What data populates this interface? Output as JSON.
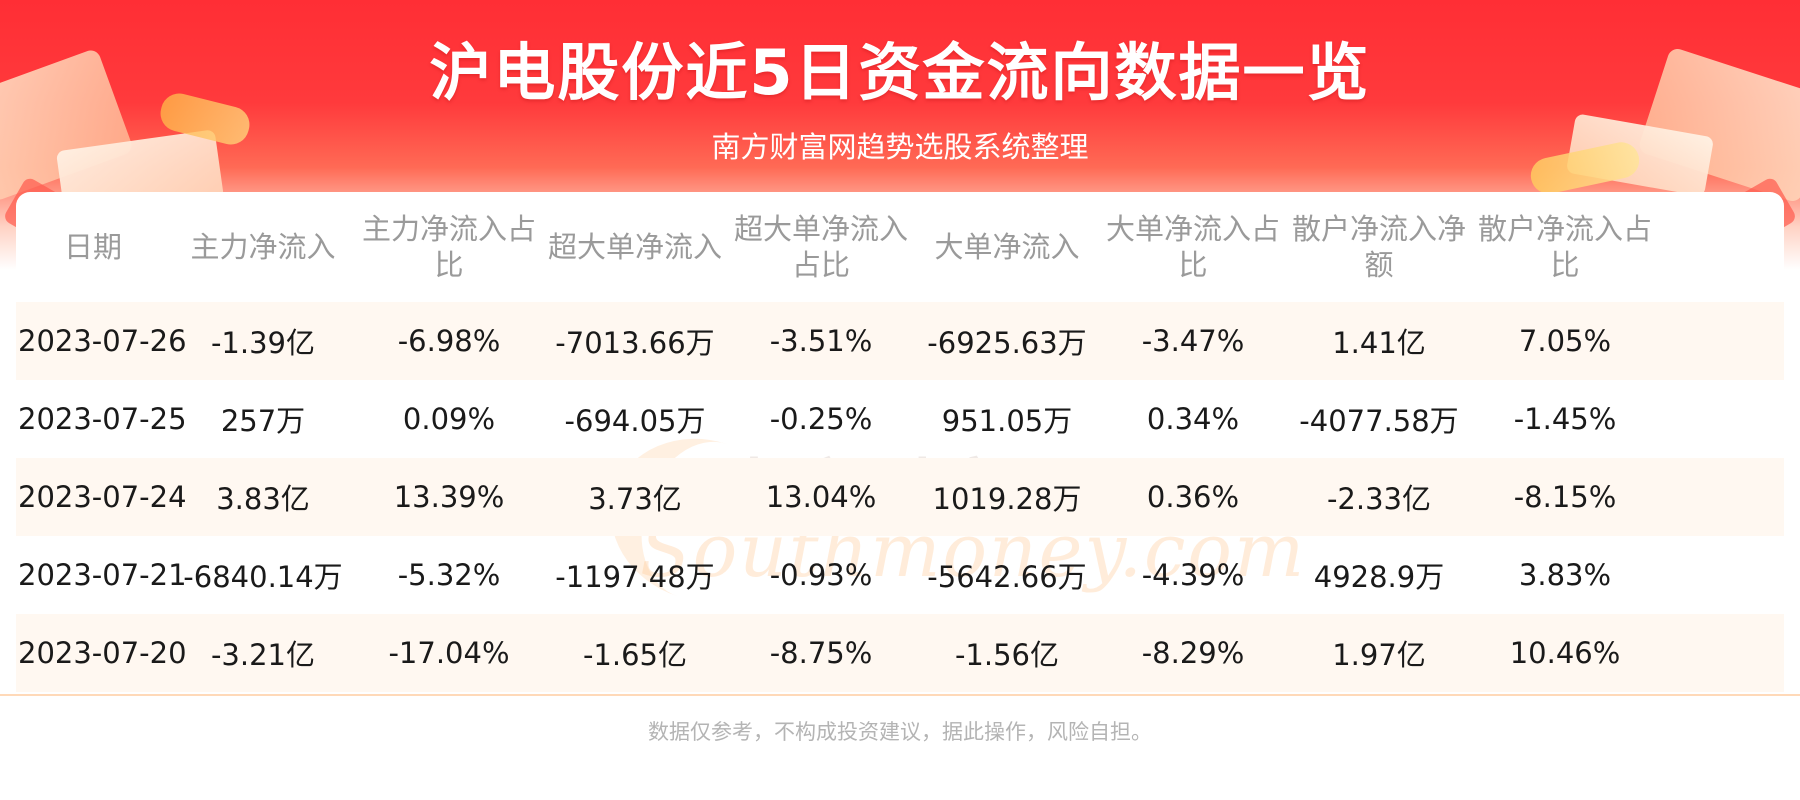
{
  "title": "沪电股份近5日资金流向数据一览",
  "subtitle": "南方财富网趋势选股系统整理",
  "watermark": {
    "cn": "南方财富网",
    "en": "Southmoney.com"
  },
  "table": {
    "headers": [
      "日期",
      "主力净流入",
      "主力净流入占比",
      "超大单净流入",
      "超大单净流入占比",
      "大单净流入",
      "大单净流入占比",
      "散户净流入净额",
      "散户净流入占比"
    ],
    "rows": [
      [
        "2023-07-26",
        "-1.39亿",
        "-6.98%",
        "-7013.66万",
        "-3.51%",
        "-6925.63万",
        "-3.47%",
        "1.41亿",
        "7.05%"
      ],
      [
        "2023-07-25",
        "257万",
        "0.09%",
        "-694.05万",
        "-0.25%",
        "951.05万",
        "0.34%",
        "-4077.58万",
        "-1.45%"
      ],
      [
        "2023-07-24",
        "3.83亿",
        "13.39%",
        "3.73亿",
        "13.04%",
        "1019.28万",
        "0.36%",
        "-2.33亿",
        "-8.15%"
      ],
      [
        "2023-07-21",
        "-6840.14万",
        "-5.32%",
        "-1197.48万",
        "-0.93%",
        "-5642.66万",
        "-4.39%",
        "4928.9万",
        "3.83%"
      ],
      [
        "2023-07-20",
        "-3.21亿",
        "-17.04%",
        "-1.65亿",
        "-8.75%",
        "-1.56亿",
        "-8.29%",
        "1.97亿",
        "10.46%"
      ]
    ]
  },
  "footer": "数据仅参考，不构成投资建议，据此操作，风险自担。",
  "colors": {
    "banner_red": "#ff2e35",
    "header_text": "#9a9a9a",
    "row_alt_bg": "#fff8f1",
    "footer_text": "#b4b4b4"
  }
}
